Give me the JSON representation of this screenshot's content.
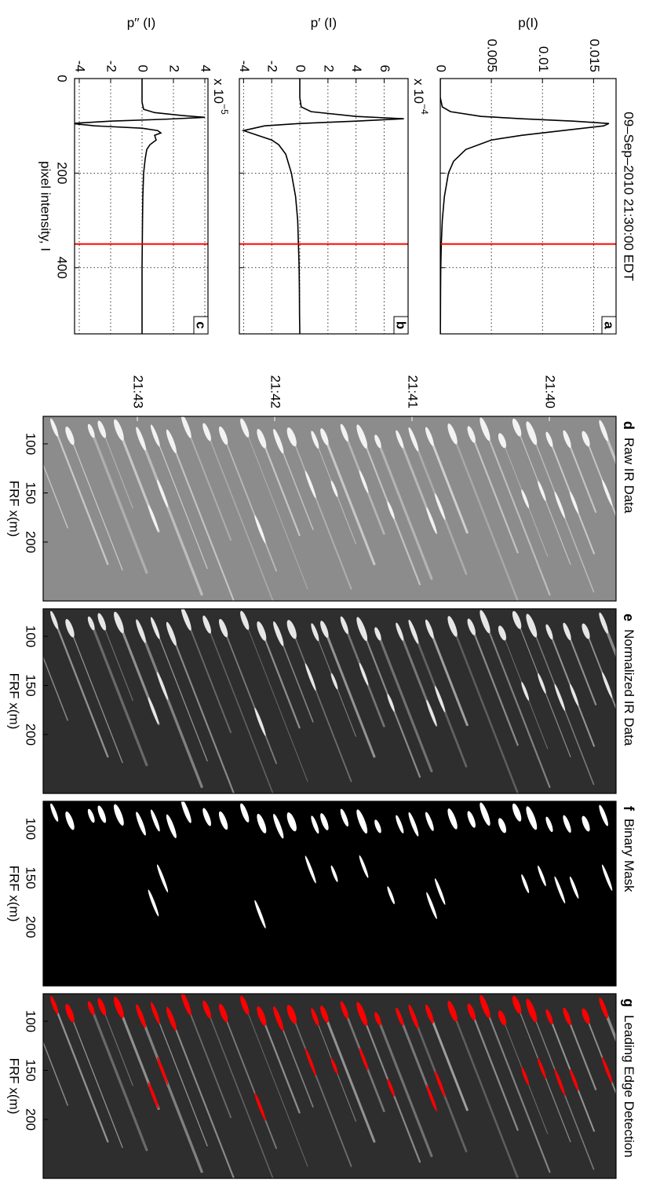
{
  "title": "09–Sep–2010 21:30:00 EDT",
  "chart_data": [
    {
      "type": "line",
      "letter": "a",
      "ylabel": "p(I)",
      "x": [
        0,
        40,
        60,
        70,
        80,
        85,
        90,
        95,
        100,
        110,
        120,
        130,
        150,
        175,
        200,
        250,
        300,
        350,
        400,
        450,
        500,
        540
      ],
      "series": [
        {
          "color": "#000000",
          "values": [
            0,
            0,
            0.0002,
            0.001,
            0.004,
            0.008,
            0.013,
            0.0165,
            0.016,
            0.012,
            0.008,
            0.005,
            0.0025,
            0.0013,
            0.0008,
            0.0004,
            0.0002,
            0.0001,
            5e-05,
            3e-05,
            2e-05,
            1e-05
          ]
        }
      ],
      "xlim": [
        0,
        540
      ],
      "xticks": [
        0,
        200,
        400
      ],
      "ylim": [
        0,
        0.0172
      ],
      "yticks": [
        0,
        0.005,
        0.01,
        0.015
      ],
      "threshold": 350,
      "threshold_color": "#ff0000",
      "grid": true
    },
    {
      "type": "line",
      "letter": "b",
      "ylabel": "p′ (I)",
      "multiplier": {
        "base": "x 10",
        "exponent": "−4"
      },
      "x": [
        0,
        40,
        60,
        70,
        80,
        85,
        90,
        95,
        100,
        110,
        120,
        130,
        140,
        160,
        200,
        250,
        300,
        350,
        400,
        450,
        500,
        540
      ],
      "series": [
        {
          "color": "#000000",
          "values": [
            0,
            0,
            0.1,
            0.8,
            4,
            7.4,
            4,
            0,
            -2.5,
            -4,
            -3,
            -2,
            -1.5,
            -1,
            -0.6,
            -0.3,
            -0.15,
            -0.1,
            -0.05,
            -0.03,
            -0.02,
            0
          ]
        }
      ],
      "xlim": [
        0,
        540
      ],
      "xticks": [
        0,
        200,
        400
      ],
      "ylim": [
        -4.3,
        7.7
      ],
      "yticks": [
        -4,
        -2,
        0,
        2,
        4,
        6
      ],
      "threshold": 350,
      "threshold_color": "#ff0000",
      "grid": true
    },
    {
      "type": "line",
      "letter": "c",
      "ylabel": "p′′ (I)",
      "xlabel": "pixel intensity, I",
      "multiplier": {
        "base": "x 10",
        "exponent": "−5"
      },
      "x": [
        0,
        50,
        65,
        72,
        78,
        82,
        86,
        90,
        95,
        100,
        105,
        110,
        115,
        120,
        130,
        140,
        150,
        170,
        200,
        250,
        300,
        400,
        540
      ],
      "series": [
        {
          "color": "#000000",
          "values": [
            0,
            0,
            0.1,
            0.8,
            2.5,
            4,
            1.5,
            -2,
            -4.5,
            -3,
            0,
            1,
            1.2,
            0.8,
            0.9,
            0.5,
            0.3,
            0.2,
            0.1,
            0.05,
            0.03,
            0,
            0
          ]
        }
      ],
      "xlim": [
        0,
        540
      ],
      "xticks": [
        0,
        200,
        400
      ],
      "ylim": [
        -4.3,
        4.2
      ],
      "yticks": [
        -4,
        -2,
        0,
        2,
        4
      ],
      "threshold": 350,
      "threshold_color": "#ff0000",
      "grid": true
    },
    {
      "type": "image",
      "letter": "d",
      "title": "Raw IR Data",
      "xlabel": "FRF x(m)",
      "xlim": [
        72,
        260
      ],
      "xticks": [
        100,
        150,
        200
      ],
      "yticks": [
        "21:40",
        "21:41",
        "21:42",
        "21:43"
      ],
      "background": "#8c8c8c",
      "streak_color": "#dcdcdc",
      "blob_color": "#f2f2f2"
    },
    {
      "type": "image",
      "letter": "e",
      "title": "Normalized IR Data",
      "xlabel": "FRF x(m)",
      "xlim": [
        72,
        260
      ],
      "xticks": [
        100,
        150,
        200
      ],
      "background": "#2e2e2e",
      "streak_color": "#b4b4b4",
      "blob_color": "#e6e6e6"
    },
    {
      "type": "image",
      "letter": "f",
      "title": "Binary Mask",
      "xlabel": "FRF x(m)",
      "xlim": [
        72,
        260
      ],
      "xticks": [
        100,
        150,
        200
      ],
      "background": "#000000",
      "streak_color": null,
      "blob_color": "#ffffff"
    },
    {
      "type": "image",
      "letter": "g",
      "title": "Leading Edge Detection",
      "xlabel": "FRF x(m)",
      "xlim": [
        72,
        260
      ],
      "xticks": [
        100,
        150,
        200
      ],
      "background": "#2e2e2e",
      "streak_color": "#b4b4b4",
      "blob_color": "#ff0000"
    }
  ]
}
